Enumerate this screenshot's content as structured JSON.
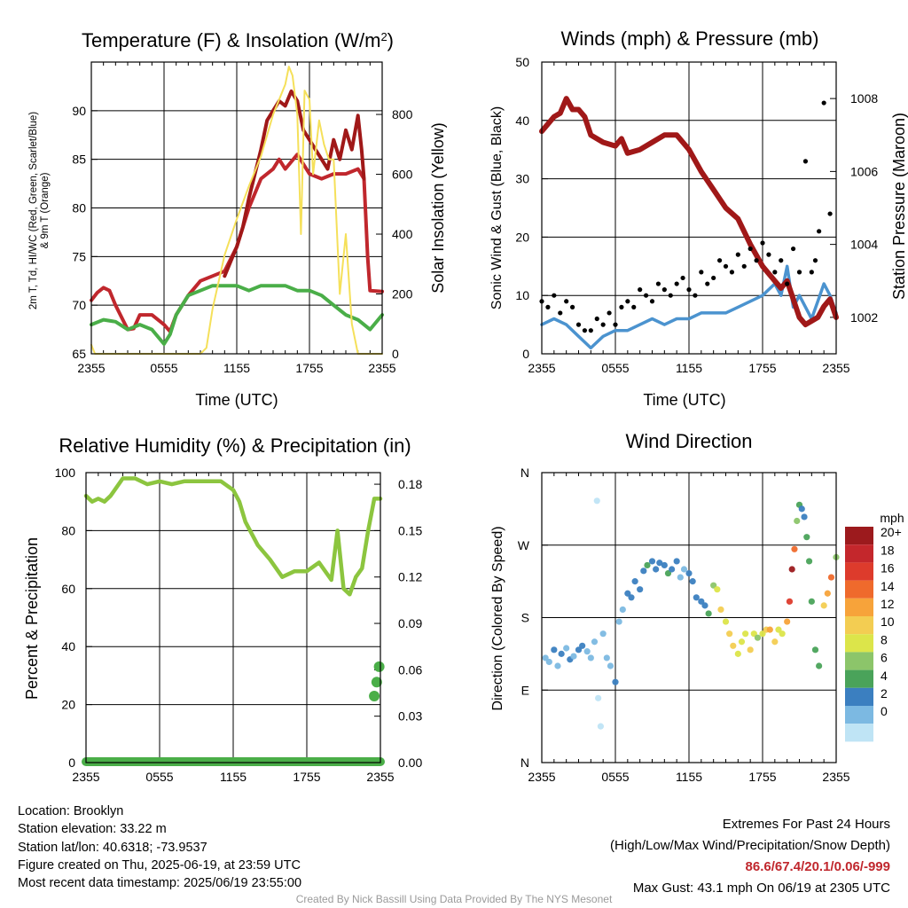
{
  "colors": {
    "air_temp": "#c0272d",
    "air_temp_9m": "#e8761c",
    "dewpoint": "#4aae48",
    "heat_index": "#a01818",
    "insolation": "#f5e05a",
    "wind": "#4b93cf",
    "gust": "#000000",
    "pressure": "#a01818",
    "rh": "#8cc53f",
    "precip": "#4aae48"
  },
  "chart_data": [
    {
      "id": "temperature",
      "type": "line",
      "title": "Temperature (F) & Insolation (W/m²)",
      "title_main": "Temperature (F) & Insolation (W/m",
      "title_sup": "2",
      "title_end": ")",
      "xlabel": "Time (UTC)",
      "ylabel": [
        "2m T, Td, HI/WC (Red, Green, Scarlet/Blue)",
        "& 9m T (Orange)"
      ],
      "ylabel2": "Solar Insolation (Yellow)",
      "xticks": [
        "2355",
        "0555",
        "1155",
        "1755",
        "2355"
      ],
      "xlim": [
        0,
        24
      ],
      "ylim": [
        65,
        95
      ],
      "yticks": [
        65,
        70,
        75,
        80,
        85,
        90
      ],
      "y2lim": [
        0,
        975
      ],
      "y2ticks": [
        0,
        200,
        400,
        600,
        800
      ],
      "grid": true,
      "series": [
        {
          "key": "air_temp",
          "x": [
            0,
            0.5,
            1,
            1.5,
            2,
            3,
            3.5,
            4,
            5,
            6,
            6.5,
            7,
            8,
            9,
            10,
            11,
            12,
            13,
            14,
            15,
            15.5,
            16,
            17,
            18,
            19,
            20,
            21,
            22,
            22.5,
            22.8,
            23,
            24
          ],
          "y": [
            70.5,
            71.3,
            71.8,
            71.5,
            70.0,
            67.5,
            67.6,
            69.0,
            69.0,
            68.0,
            67.3,
            69.0,
            71.0,
            72.5,
            73.0,
            73.5,
            76.0,
            80.0,
            83.0,
            84.0,
            85.0,
            84.0,
            85.5,
            83.5,
            83.0,
            83.5,
            83.5,
            84.0,
            83.0,
            75.0,
            71.5,
            71.4
          ]
        },
        {
          "key": "heat_index",
          "x": [
            11,
            12,
            12.5,
            13,
            14,
            14.5,
            15,
            15.5,
            16,
            16.5,
            17,
            17.5,
            18,
            18.5,
            19,
            19.5,
            20,
            20.5,
            21,
            21.5,
            22,
            22.3,
            22.5
          ],
          "y": [
            73.0,
            76.0,
            78.0,
            81.0,
            86.0,
            89.0,
            90.0,
            91.0,
            90.5,
            92.0,
            91.0,
            88.0,
            87.0,
            86.0,
            85.0,
            84.0,
            87.0,
            85.0,
            88.0,
            86.0,
            89.5,
            86.0,
            83.0
          ]
        },
        {
          "key": "dewpoint",
          "x": [
            0,
            1,
            2,
            3,
            4,
            5,
            6,
            6.5,
            7,
            8,
            9,
            10,
            11,
            12,
            13,
            14,
            15,
            16,
            17,
            18,
            19,
            20,
            21,
            22,
            23,
            24
          ],
          "y": [
            68.0,
            68.5,
            68.3,
            67.5,
            68.0,
            67.5,
            66.0,
            67.0,
            69.0,
            71.0,
            71.5,
            72.0,
            72.0,
            72.0,
            71.5,
            72.0,
            72.0,
            72.0,
            71.5,
            71.5,
            71.0,
            70.0,
            69.0,
            68.5,
            67.5,
            69.0
          ]
        },
        {
          "key": "insolation",
          "axis": 2,
          "x": [
            0,
            0.3,
            1,
            2,
            4,
            6,
            8,
            9,
            9.5,
            10,
            11,
            12,
            13,
            14,
            15,
            16,
            16.3,
            16.6,
            17,
            17.3,
            17.6,
            18,
            18.3,
            18.8,
            19.2,
            19.6,
            20,
            20.5,
            21,
            21.5,
            22,
            23,
            24
          ],
          "y": [
            30,
            0,
            0,
            0,
            0,
            0,
            0,
            0,
            20,
            150,
            330,
            450,
            560,
            660,
            800,
            900,
            960,
            930,
            800,
            400,
            880,
            850,
            600,
            780,
            700,
            650,
            650,
            200,
            400,
            100,
            0,
            0,
            0
          ]
        }
      ]
    },
    {
      "id": "winds",
      "type": "line",
      "title": "Winds (mph) & Pressure (mb)",
      "xlabel": "Time (UTC)",
      "ylabel": "Sonic Wind & Gust (Blue, Black)",
      "ylabel2": "Station Pressure (Maroon)",
      "xticks": [
        "2355",
        "0555",
        "1155",
        "1755",
        "2355"
      ],
      "xlim": [
        0,
        24
      ],
      "ylim": [
        0,
        50
      ],
      "yticks": [
        0,
        10,
        20,
        30,
        40,
        50
      ],
      "y2lim": [
        1001.0,
        1009.0
      ],
      "y2ticks": [
        1002,
        1004,
        1006,
        1008
      ],
      "grid": true,
      "series": [
        {
          "key": "pressure",
          "axis": 2,
          "x": [
            0,
            1,
            1.5,
            2,
            2.5,
            3,
            3.5,
            4,
            5,
            6,
            6.5,
            7,
            8,
            9,
            10,
            11,
            12,
            13,
            14,
            15,
            16,
            17,
            18,
            19,
            19.5,
            20,
            20.5,
            21,
            21.5,
            22,
            22.5,
            23,
            23.5,
            24
          ],
          "y": [
            1007.1,
            1007.5,
            1007.6,
            1008.0,
            1007.7,
            1007.7,
            1007.5,
            1007.0,
            1006.8,
            1006.7,
            1006.9,
            1006.5,
            1006.6,
            1006.8,
            1007.0,
            1007.0,
            1006.6,
            1006.0,
            1005.5,
            1005.0,
            1004.7,
            1004.0,
            1003.4,
            1003.0,
            1002.8,
            1003.0,
            1002.5,
            1002.0,
            1001.8,
            1001.9,
            1002.0,
            1002.3,
            1002.5,
            1002.0
          ]
        },
        {
          "key": "wind",
          "x": [
            0,
            1,
            2,
            3,
            4,
            5,
            6,
            7,
            8,
            9,
            10,
            11,
            12,
            13,
            14,
            15,
            16,
            17,
            18,
            19,
            19.5,
            20,
            20.5,
            21,
            22,
            22.5,
            23,
            23.5,
            24
          ],
          "y": [
            5,
            6,
            5,
            3,
            1,
            3,
            4,
            4,
            5,
            6,
            5,
            6,
            6,
            7,
            7,
            7,
            8,
            9,
            10,
            12,
            10,
            15,
            8,
            10,
            6,
            9,
            12,
            10,
            7
          ]
        }
      ],
      "gust": {
        "x": [
          0,
          0.5,
          1,
          1.5,
          2,
          2.5,
          3,
          3.5,
          4,
          4.5,
          5,
          5.5,
          6,
          6.5,
          7,
          7.5,
          8,
          8.5,
          9,
          9.5,
          10,
          10.5,
          11,
          11.5,
          12,
          12.5,
          13,
          13.5,
          14,
          14.5,
          15,
          15.5,
          16,
          16.5,
          17,
          17.5,
          18,
          18.5,
          19,
          19.5,
          20,
          20.5,
          21,
          21.5,
          22,
          22.3,
          22.6,
          23,
          23.5
        ],
        "y": [
          9,
          8,
          10,
          7,
          9,
          8,
          5,
          4,
          4,
          6,
          5,
          7,
          5,
          8,
          9,
          8,
          11,
          10,
          9,
          12,
          11,
          10,
          12,
          13,
          11,
          10,
          14,
          12,
          13,
          16,
          15,
          14,
          17,
          15,
          18,
          16,
          19,
          17,
          14,
          16,
          12,
          18,
          14,
          33,
          14,
          16,
          21,
          43,
          24
        ]
      }
    },
    {
      "id": "humidity",
      "type": "line",
      "title": "Relative Humidity (%) & Precipitation (in)",
      "ylabel": "Percent & Precipitation",
      "xticks": [
        "2355",
        "0555",
        "1155",
        "1755",
        "2355"
      ],
      "xlim": [
        0,
        24
      ],
      "ylim": [
        0,
        100
      ],
      "yticks": [
        0,
        20,
        40,
        60,
        80,
        100
      ],
      "y2lim": [
        0,
        0.1875
      ],
      "y2ticks": [
        "0.00",
        "0.03",
        "0.06",
        "0.09",
        "0.12",
        "0.15",
        "0.18"
      ],
      "grid": true,
      "series": [
        {
          "key": "rh",
          "x": [
            0,
            0.5,
            1,
            1.5,
            2,
            3,
            4,
            5,
            6,
            7,
            8,
            9,
            10,
            11,
            12,
            12.5,
            13,
            14,
            15,
            16,
            17,
            18,
            19,
            20,
            20.5,
            21,
            21.5,
            22,
            22.5,
            23,
            23.5,
            24
          ],
          "y": [
            92,
            90,
            91,
            90,
            92,
            98,
            98,
            96,
            97,
            96,
            97,
            97,
            97,
            97,
            94,
            90,
            83,
            75,
            70,
            64,
            66,
            66,
            69,
            63,
            80,
            60,
            58,
            64,
            67,
            80,
            91,
            91
          ]
        },
        {
          "key": "precip",
          "axis": 2,
          "x": [
            0,
            24
          ],
          "y": [
            0,
            0
          ]
        }
      ],
      "precip_points": {
        "x": [
          23.5,
          23.7,
          23.9
        ],
        "y": [
          0.043,
          0.052,
          0.062
        ]
      }
    },
    {
      "id": "direction",
      "type": "scatter",
      "title": "Wind Direction",
      "ylabel": "Direction (Colored By Speed)",
      "xticks": [
        "2355",
        "0555",
        "1155",
        "1755",
        "2355"
      ],
      "xlim": [
        0,
        24
      ],
      "ylim": [
        0,
        360
      ],
      "yticks": [
        "N",
        "E",
        "S",
        "W",
        "N"
      ],
      "ytick_values": [
        0,
        90,
        180,
        270,
        360
      ],
      "grid": true,
      "legend": {
        "title": "mph",
        "placement": "right",
        "labels": [
          "20+",
          "18",
          "16",
          "14",
          "12",
          "10",
          "8",
          "6",
          "4",
          "2",
          "0"
        ],
        "colors": [
          "#9c1a1d",
          "#c4272c",
          "#dd3b2c",
          "#ef6a2c",
          "#f7a33a",
          "#f3cd52",
          "#dce54a",
          "#8cc56a",
          "#4aa35a",
          "#3b7fc0",
          "#7cb9e2",
          "#bfe4f5"
        ]
      },
      "points": {
        "x": [
          0.3,
          0.6,
          1.0,
          1.3,
          1.6,
          2.0,
          2.3,
          2.6,
          3.0,
          3.3,
          3.7,
          4.0,
          4.3,
          4.5,
          4.6,
          4.8,
          5.0,
          5.3,
          5.6,
          6.0,
          6.3,
          6.6,
          7.0,
          7.3,
          7.6,
          8.0,
          8.3,
          8.6,
          9.0,
          9.3,
          9.6,
          10.0,
          10.3,
          10.6,
          11.0,
          11.3,
          11.6,
          12.0,
          12.3,
          12.6,
          13.0,
          13.3,
          13.6,
          14.0,
          14.3,
          14.6,
          15.0,
          15.3,
          15.6,
          16.0,
          16.3,
          16.6,
          17.0,
          17.3,
          17.6,
          18.0,
          18.3,
          18.6,
          19.0,
          19.3,
          19.6,
          20.0,
          20.2,
          20.4,
          20.6,
          20.8,
          21.0,
          21.2,
          21.4,
          21.6,
          21.8,
          22.0,
          22.3,
          22.6,
          23.0,
          23.3,
          23.6,
          24.0
        ],
        "y": [
          130,
          125,
          140,
          120,
          135,
          142,
          128,
          132,
          140,
          145,
          138,
          130,
          150,
          325,
          80,
          45,
          160,
          130,
          120,
          100,
          175,
          190,
          210,
          205,
          225,
          215,
          238,
          245,
          250,
          240,
          248,
          245,
          235,
          240,
          250,
          230,
          240,
          235,
          225,
          205,
          200,
          195,
          185,
          220,
          215,
          190,
          175,
          160,
          145,
          135,
          150,
          160,
          140,
          160,
          155,
          160,
          165,
          165,
          150,
          165,
          160,
          175,
          200,
          240,
          265,
          300,
          320,
          315,
          305,
          280,
          250,
          200,
          140,
          120,
          195,
          210,
          230,
          255
        ],
        "speed": [
          3,
          3,
          5,
          3,
          4,
          3,
          4,
          3,
          4,
          5,
          3,
          2,
          3,
          0,
          1,
          1,
          2,
          3,
          3,
          4,
          2,
          3,
          5,
          4,
          4,
          5,
          5,
          6,
          5,
          4,
          5,
          5,
          6,
          4,
          5,
          3,
          3,
          4,
          4,
          5,
          5,
          5,
          6,
          8,
          10,
          12,
          10,
          12,
          13,
          11,
          10,
          11,
          12,
          10,
          9,
          11,
          13,
          14,
          12,
          10,
          11,
          14,
          18,
          20,
          17,
          8,
          7,
          5,
          4,
          7,
          6,
          6,
          6,
          6,
          12,
          14,
          17,
          8
        ]
      }
    }
  ],
  "info": {
    "location": "Location: Brooklyn",
    "elevation": "Station elevation: 33.22 m",
    "latlon": "Station lat/lon: 40.6318; -73.9537",
    "created": "Figure created on Thu, 2025-06-19, at 23:59 UTC",
    "recent": "Most recent data timestamp: 2025/06/19 23:55:00"
  },
  "extremes": {
    "title": "Extremes For Past 24 Hours",
    "subtitle": "(High/Low/Max Wind/Precipitation/Snow Depth)",
    "values": "86.6/67.4/20.1/0.06/-999",
    "gust": "Max Gust: 43.1 mph On 06/19 at 2305 UTC"
  },
  "credit": "Created By Nick Bassill Using Data Provided By The NYS Mesonet"
}
